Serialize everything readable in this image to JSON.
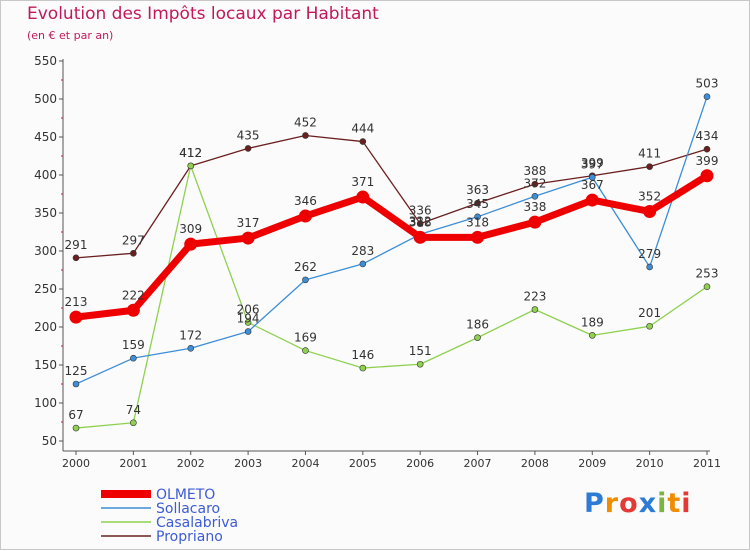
{
  "chart_data": {
    "type": "line",
    "title": "Evolution des Impôts locaux par Habitant",
    "subtitle": "(en € et par an)",
    "xlabel": "",
    "ylabel": "",
    "x": [
      "2000",
      "2001",
      "2002",
      "2003",
      "2004",
      "2005",
      "2006",
      "2007",
      "2008",
      "2009",
      "2010",
      "2011"
    ],
    "ylim": [
      50,
      550
    ],
    "yticks": [
      50,
      100,
      150,
      200,
      250,
      300,
      350,
      400,
      450,
      500,
      550
    ],
    "grid": false,
    "legend_position": "bottom-left",
    "series": [
      {
        "name": "Propriano",
        "color": "#6b1f1f",
        "values": [
          291,
          297,
          412,
          435,
          452,
          444,
          336,
          363,
          388,
          399,
          411,
          434
        ]
      },
      {
        "name": "Casalabriva",
        "color": "#8fd14f",
        "values": [
          67,
          74,
          412,
          206,
          169,
          146,
          151,
          186,
          223,
          189,
          201,
          253
        ]
      },
      {
        "name": "Sollacaro",
        "color": "#3d8ed6",
        "values": [
          125,
          159,
          172,
          194,
          262,
          283,
          322,
          345,
          372,
          397,
          279,
          503
        ]
      },
      {
        "name": "OLMETO",
        "color": "#ee0000",
        "values": [
          213,
          222,
          309,
          317,
          346,
          371,
          318,
          318,
          338,
          367,
          352,
          399
        ]
      }
    ],
    "legend": [
      "OLMETO",
      "Sollacaro",
      "Casalabriva",
      "Propriano"
    ]
  },
  "logo": {
    "letters": [
      "P",
      "r",
      "o",
      "x",
      "i",
      "t",
      "i"
    ]
  }
}
